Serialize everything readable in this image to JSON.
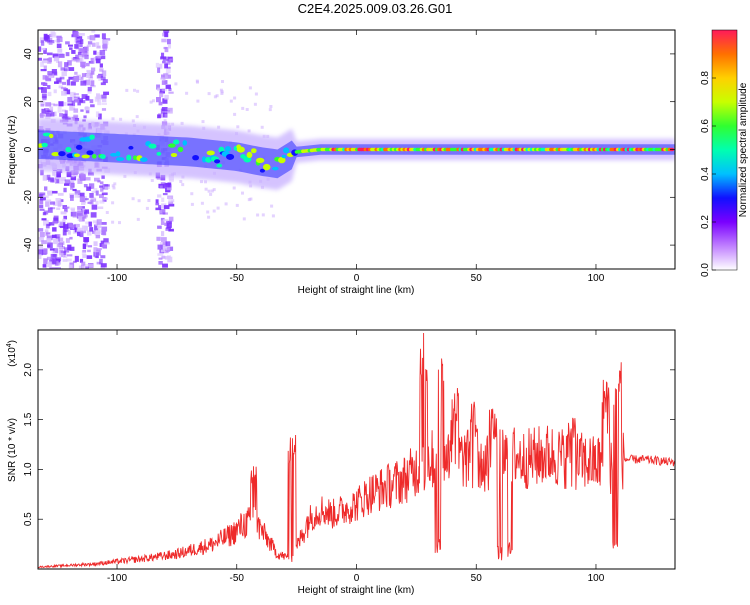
{
  "title": "C2E4.2025.009.03.26.G01",
  "chart_data": [
    {
      "type": "heatmap",
      "xlabel": "Height of straight line (km)",
      "ylabel": "Frequency (Hz)",
      "xlim": [
        -133,
        133
      ],
      "ylim": [
        -50,
        50
      ],
      "xticks": [
        -100,
        -50,
        0,
        50,
        100
      ],
      "yticks": [
        -40,
        -20,
        0,
        20,
        40
      ],
      "colorbar": {
        "label": "Normalized spectral amplitude",
        "range": [
          0,
          1
        ],
        "ticks": [
          "0.0",
          "0.2",
          "0.4",
          "0.6",
          "0.8"
        ],
        "colormap": [
          "#ffffff",
          "#c080ff",
          "#7a00ff",
          "#1010ff",
          "#00c0ff",
          "#00ffb0",
          "#30ff30",
          "#c8ff00",
          "#ffd000",
          "#ff7000",
          "#ff1a5a"
        ]
      },
      "ridge": {
        "x": [
          -130,
          -110,
          -90,
          -70,
          -50,
          -40,
          -33,
          -25,
          -15,
          0,
          25,
          50,
          75,
          100,
          133
        ],
        "y": [
          2,
          1,
          0,
          -1,
          -3,
          -5,
          -6,
          -1,
          0,
          0,
          0,
          0,
          0,
          0,
          0
        ]
      },
      "noise_bands_x": [
        [
          -133,
          -105
        ],
        [
          -84,
          -78
        ]
      ]
    },
    {
      "type": "line",
      "xlabel": "Height of straight line (km)",
      "ylabel": "SNR (10 * v/v)",
      "y_multiplier": "(x10^4)",
      "xlim": [
        -133,
        133
      ],
      "ylim": [
        0,
        24000
      ],
      "xticks": [
        -100,
        -50,
        0,
        50,
        100
      ],
      "yticks": [
        5000,
        10000,
        15000,
        20000
      ],
      "ytick_labels": [
        "0.5",
        "1.0",
        "1.5",
        "2.0"
      ],
      "color": "#ee2a2a",
      "envelope": {
        "x": [
          -133,
          -110,
          -90,
          -75,
          -60,
          -52,
          -47,
          -43,
          -40,
          -33,
          -27,
          -20,
          -15,
          -10,
          -5,
          0,
          5,
          10,
          20,
          25,
          30,
          35,
          40,
          45,
          50,
          55,
          60,
          65,
          70,
          80,
          90,
          100,
          105,
          108,
          110,
          112,
          120,
          133
        ],
        "y": [
          200,
          500,
          1000,
          1500,
          2500,
          3500,
          4500,
          5000,
          4000,
          1500,
          1000,
          5000,
          6000,
          5500,
          6000,
          6500,
          7500,
          8000,
          9000,
          10000,
          11000,
          11000,
          11500,
          11000,
          11000,
          10500,
          11000,
          11500,
          11000,
          11500,
          11000,
          10500,
          11000,
          9000,
          11000,
          11000,
          11000,
          10700
        ]
      },
      "peaks": [
        {
          "x": -43,
          "y": 10600
        },
        {
          "x": -27,
          "y": 14000
        },
        {
          "x": 28,
          "y": 24000
        },
        {
          "x": 35,
          "y": 24000
        },
        {
          "x": 41,
          "y": 19000
        },
        {
          "x": 49,
          "y": 17000
        },
        {
          "x": 57,
          "y": 17000
        },
        {
          "x": 90,
          "y": 16000
        },
        {
          "x": 104,
          "y": 20000
        },
        {
          "x": 109,
          "y": 21000
        }
      ],
      "dips": [
        {
          "x": 34,
          "y": 1500
        },
        {
          "x": 60,
          "y": 800
        },
        {
          "x": 64,
          "y": 1200
        },
        {
          "x": 108,
          "y": 1500
        }
      ]
    }
  ]
}
